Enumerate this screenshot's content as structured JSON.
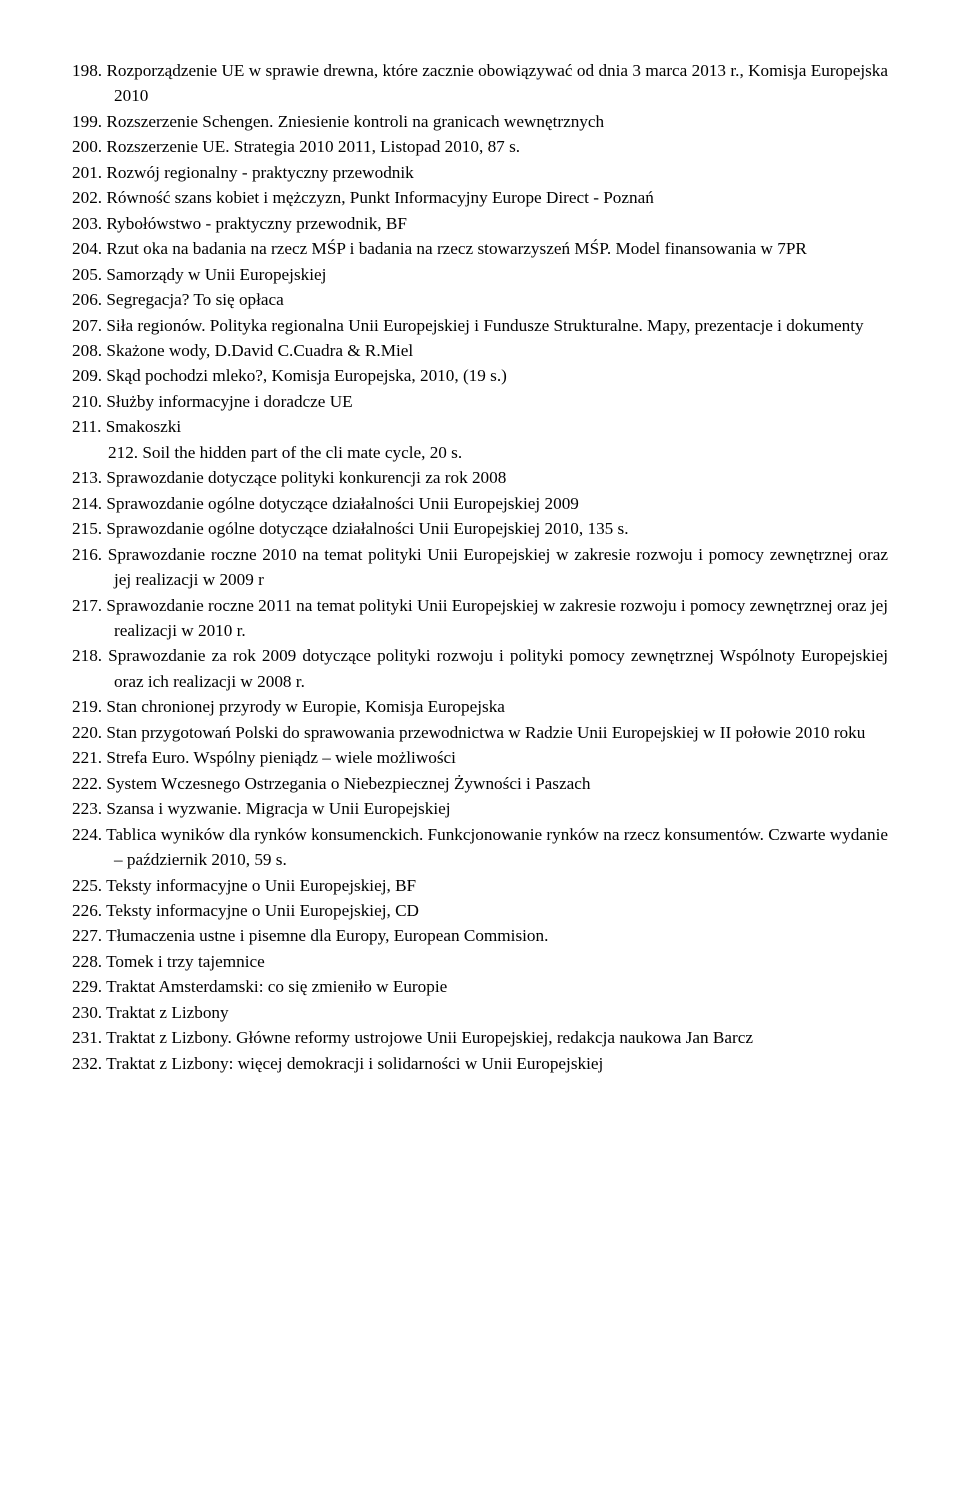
{
  "items": [
    {
      "n": "198.",
      "t": "Rozporządzenie UE w sprawie drewna, które zacznie obowiązywać od dnia 3 marca 2013 r., Komisja Europejska 2010"
    },
    {
      "n": "199.",
      "t": "Rozszerzenie Schengen. Zniesienie kontroli na granicach wewnętrznych"
    },
    {
      "n": "200.",
      "t": "Rozszerzenie UE. Strategia 2010 2011, Listopad 2010, 87 s."
    },
    {
      "n": "201.",
      "t": "Rozwój regionalny - praktyczny przewodnik"
    },
    {
      "n": "202.",
      "t": "Równość szans kobiet i mężczyzn, Punkt Informacyjny Europe Direct - Poznań"
    },
    {
      "n": "203.",
      "t": "Rybołówstwo - praktyczny przewodnik, BF"
    },
    {
      "n": "204.",
      "t": "Rzut oka na badania na rzecz MŚP i badania na rzecz stowarzyszeń MŚP. Model finansowania w 7PR"
    },
    {
      "n": "205.",
      "t": "Samorządy w Unii Europejskiej"
    },
    {
      "n": "206.",
      "t": "Segregacja? To się opłaca"
    },
    {
      "n": "207.",
      "t": "Siła regionów.  Polityka regionalna Unii Europejskiej i Fundusze Strukturalne. Mapy, prezentacje i dokumenty"
    },
    {
      "n": "208.",
      "t": "Skażone wody, D.David  C.Cuadra & R.Miel"
    },
    {
      "n": "209.",
      "t": "Skąd pochodzi mleko?, Komisja Europejska, 2010, (19 s.)"
    },
    {
      "n": "210.",
      "t": "Służby informacyjne i doradcze UE"
    },
    {
      "n": "211.",
      "t": "Smakoszki"
    },
    {
      "n": "212.",
      "t": "Soil the hidden part of the cli mate cycle, 20 s.",
      "indent": true
    },
    {
      "n": "213.",
      "t": "Sprawozdanie dotyczące polityki konkurencji za rok 2008"
    },
    {
      "n": "214.",
      "t": "Sprawozdanie ogólne dotyczące działalności Unii Europejskiej 2009"
    },
    {
      "n": "215.",
      "t": "Sprawozdanie ogólne dotyczące działalności Unii Europejskiej 2010, 135 s."
    },
    {
      "n": "216.",
      "t": "Sprawozdanie roczne 2010 na temat polityki Unii Europejskiej w zakresie rozwoju i pomocy zewnętrznej oraz jej realizacji w 2009 r"
    },
    {
      "n": "217.",
      "t": "Sprawozdanie roczne 2011 na temat polityki Unii Europejskiej w zakresie rozwoju i pomocy zewnętrznej oraz jej realizacji w 2010 r."
    },
    {
      "n": "218.",
      "t": "Sprawozdanie za rok 2009 dotyczące polityki rozwoju i polityki pomocy zewnętrznej Wspólnoty Europejskiej oraz ich realizacji w 2008 r."
    },
    {
      "n": "219.",
      "t": "Stan chronionej przyrody w Europie, Komisja Europejska"
    },
    {
      "n": "220.",
      "t": "Stan przygotowań Polski do sprawowania przewodnictwa w Radzie Unii Europejskiej w II połowie 2010 roku"
    },
    {
      "n": "221.",
      "t": "Strefa Euro. Wspólny pieniądz – wiele możliwości"
    },
    {
      "n": "222.",
      "t": "System Wczesnego Ostrzegania o Niebezpiecznej Żywności i Paszach"
    },
    {
      "n": "223.",
      "t": "Szansa i wyzwanie. Migracja w Unii Europejskiej"
    },
    {
      "n": "224.",
      "t": "Tablica wyników dla rynków konsumenckich. Funkcjonowanie rynków na rzecz konsumentów. Czwarte wydanie – październik 2010, 59 s."
    },
    {
      "n": "225.",
      "t": "Teksty informacyjne o Unii Europejskiej, BF"
    },
    {
      "n": "226.",
      "t": "Teksty informacyjne o Unii Europejskiej, CD"
    },
    {
      "n": "227.",
      "t": "Tłumaczenia ustne i pisemne dla Europy, European Commision."
    },
    {
      "n": "228.",
      "t": "Tomek i trzy tajemnice"
    },
    {
      "n": "229.",
      "t": "Traktat Amsterdamski: co się zmieniło w Europie"
    },
    {
      "n": "230.",
      "t": "Traktat z Lizbony"
    },
    {
      "n": "231.",
      "t": "Traktat z Lizbony. Główne reformy ustrojowe Unii Europejskiej, redakcja naukowa Jan Barcz"
    },
    {
      "n": "232.",
      "t": "Traktat z Lizbony: więcej demokracji i solidarności w Unii Europejskiej"
    }
  ]
}
